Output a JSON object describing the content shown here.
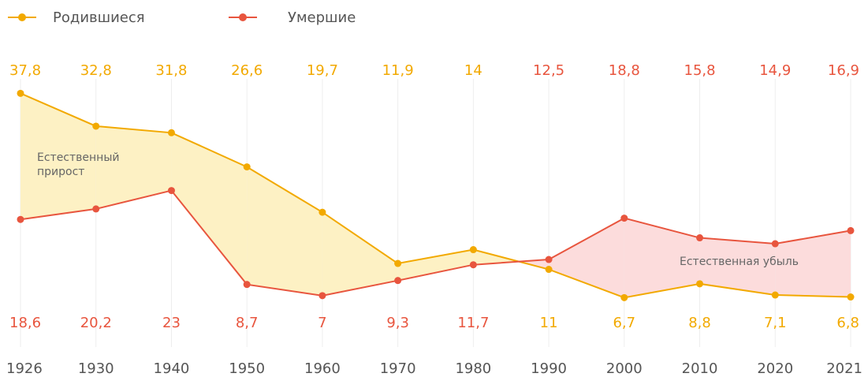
{
  "chart_data": {
    "type": "line",
    "categories": [
      "1926",
      "1930",
      "1940",
      "1950",
      "1960",
      "1970",
      "1980",
      "1990",
      "2000",
      "2010",
      "2020",
      "2021"
    ],
    "series": [
      {
        "name": "Родившиеся",
        "color": "#f2a900",
        "values": [
          37.8,
          32.8,
          31.8,
          26.6,
          19.7,
          11.9,
          14,
          11,
          6.7,
          8.8,
          7.1,
          6.8
        ],
        "value_labels": [
          "37,8",
          "32,8",
          "31,8",
          "26,6",
          "19,7",
          "11,9",
          "14",
          "11",
          "6,7",
          "8,8",
          "7,1",
          "6,8"
        ]
      },
      {
        "name": "Умершие",
        "color": "#e8553e",
        "values": [
          18.6,
          20.2,
          23,
          8.7,
          7,
          9.3,
          11.7,
          12.5,
          18.8,
          15.8,
          14.9,
          16.9
        ],
        "value_labels": [
          "18,6",
          "20,2",
          "23",
          "8,7",
          "7",
          "9,3",
          "11,7",
          "12,5",
          "18,8",
          "15,8",
          "14,9",
          "16,9"
        ]
      }
    ],
    "fill_colors": [
      "#fdf1c4",
      "#fcdcdc"
    ],
    "annotations": [
      {
        "lines": [
          "Естественный",
          "прирост"
        ]
      },
      {
        "lines": [
          "Естественная убыль"
        ]
      }
    ],
    "ylim": [
      5,
      40
    ],
    "legend": "top-left"
  }
}
